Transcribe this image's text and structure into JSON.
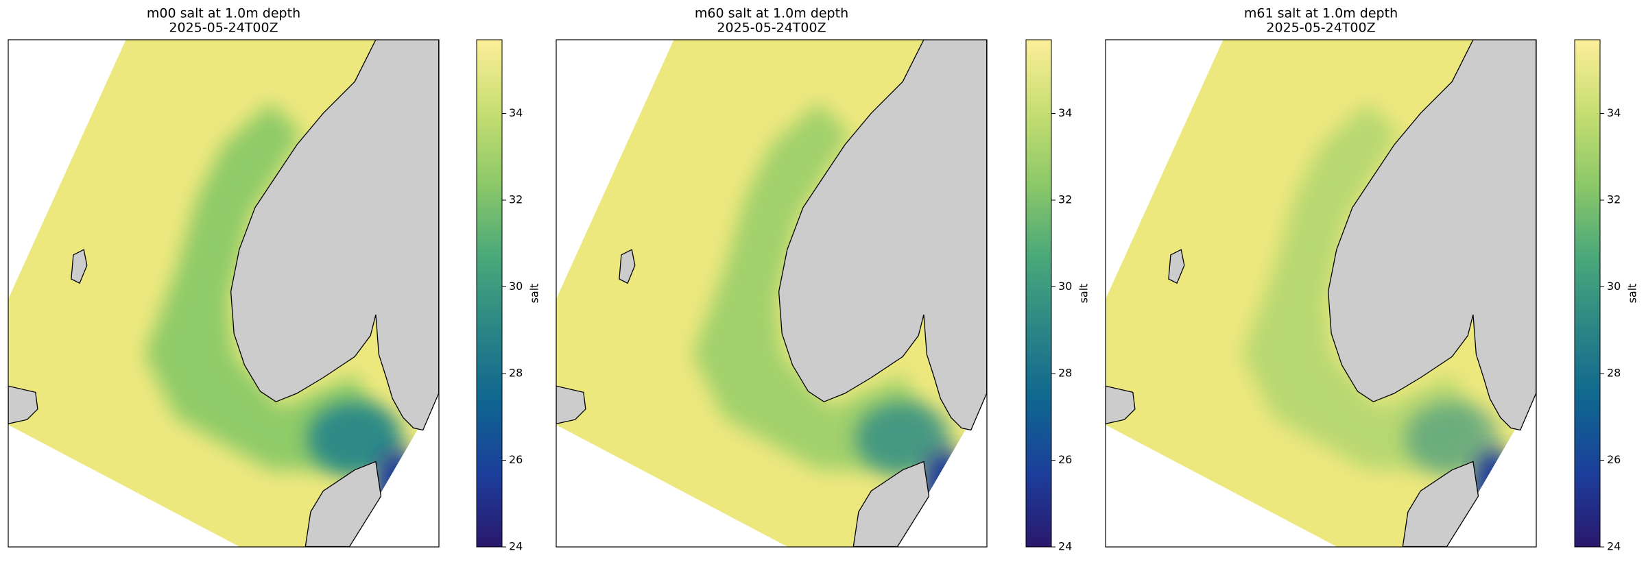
{
  "panels": [
    {
      "title": "m00 salt at 1.0m depth",
      "subtitle": "2025-05-24T00Z",
      "colorbar": {
        "label": "salt",
        "lim": [
          24,
          35.7
        ],
        "ticks": [
          24,
          26,
          28,
          30,
          32,
          34
        ]
      }
    },
    {
      "title": "m60 salt at 1.0m depth",
      "subtitle": "2025-05-24T00Z",
      "colorbar": {
        "label": "salt",
        "lim": [
          24,
          35.7
        ],
        "ticks": [
          24,
          26,
          28,
          30,
          32,
          34
        ]
      }
    },
    {
      "title": "m61 salt at 1.0m depth",
      "subtitle": "2025-05-24T00Z",
      "colorbar": {
        "label": "salt",
        "lim": [
          24,
          35.7
        ],
        "ticks": [
          24,
          26,
          28,
          30,
          32,
          34
        ]
      }
    }
  ],
  "colormap": [
    "#2a186c",
    "#1c3e9b",
    "#0f6590",
    "#2a8686",
    "#4aa87a",
    "#8cc868",
    "#c6de72",
    "#fdee99"
  ]
}
